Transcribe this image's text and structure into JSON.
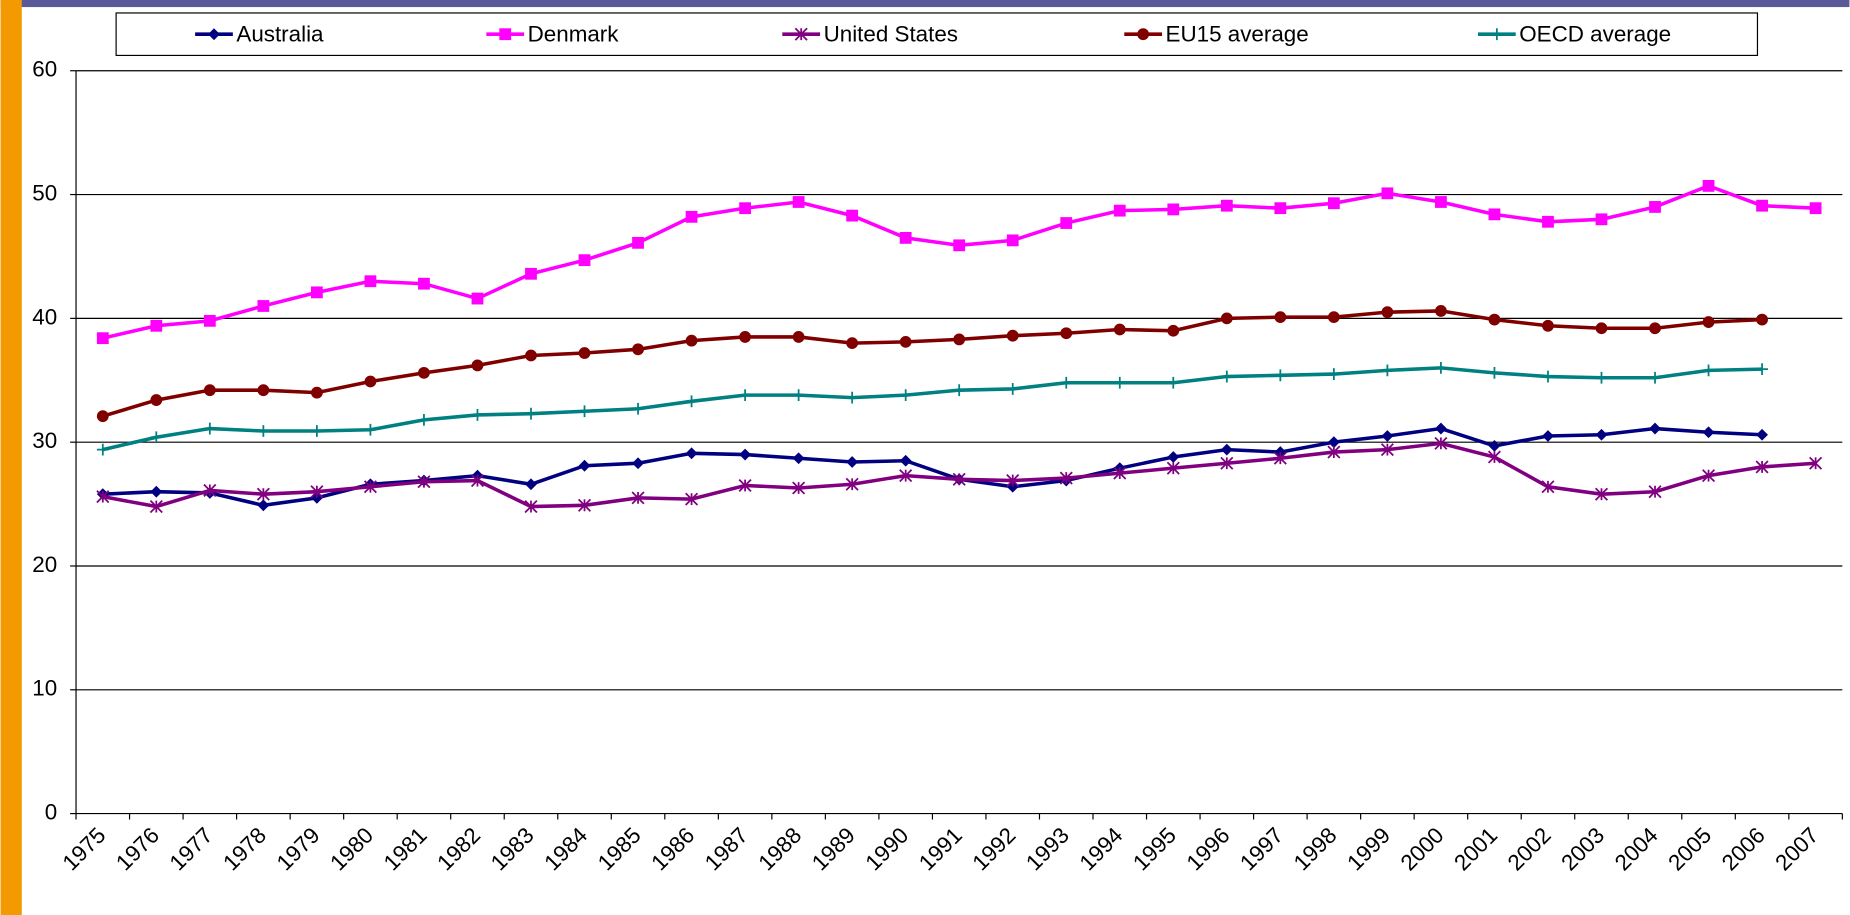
{
  "chart_data": {
    "type": "line",
    "categories": [
      "1975",
      "1976",
      "1977",
      "1978",
      "1979",
      "1980",
      "1981",
      "1982",
      "1983",
      "1984",
      "1985",
      "1986",
      "1987",
      "1988",
      "1989",
      "1990",
      "1991",
      "1992",
      "1993",
      "1994",
      "1995",
      "1996",
      "1997",
      "1998",
      "1999",
      "2000",
      "2001",
      "2002",
      "2003",
      "2004",
      "2005",
      "2006",
      "2007"
    ],
    "series": [
      {
        "name": "Australia",
        "color": "#000080",
        "marker": "diamond",
        "values": [
          25.8,
          26.0,
          25.9,
          24.9,
          25.5,
          26.6,
          26.9,
          27.3,
          26.6,
          28.1,
          28.3,
          29.1,
          29.0,
          28.7,
          28.4,
          28.5,
          27.0,
          26.4,
          26.9,
          27.9,
          28.8,
          29.4,
          29.2,
          30.0,
          30.5,
          31.1,
          29.7,
          30.5,
          30.6,
          31.1,
          30.8,
          30.6,
          null
        ]
      },
      {
        "name": "Denmark",
        "color": "#ff00ff",
        "marker": "square",
        "values": [
          38.4,
          39.4,
          39.8,
          41.0,
          42.1,
          43.0,
          42.8,
          41.6,
          43.6,
          44.7,
          46.1,
          48.2,
          48.9,
          49.4,
          48.3,
          46.5,
          45.9,
          46.3,
          47.7,
          48.7,
          48.8,
          49.1,
          48.9,
          49.3,
          50.1,
          49.4,
          48.4,
          47.8,
          48.0,
          49.0,
          50.7,
          49.1,
          48.9
        ]
      },
      {
        "name": "United States",
        "color": "#800080",
        "marker": "asterisk",
        "values": [
          25.6,
          24.8,
          26.1,
          25.8,
          26.0,
          26.4,
          26.8,
          26.9,
          24.8,
          24.9,
          25.5,
          25.4,
          26.5,
          26.3,
          26.6,
          27.3,
          27.0,
          26.9,
          27.1,
          27.5,
          27.9,
          28.3,
          28.7,
          29.2,
          29.4,
          29.9,
          28.8,
          26.4,
          25.8,
          26.0,
          27.3,
          28.0,
          28.3
        ]
      },
      {
        "name": "EU15 average",
        "color": "#800000",
        "marker": "circle",
        "values": [
          32.1,
          33.4,
          34.2,
          34.2,
          34.0,
          34.9,
          35.6,
          36.2,
          37.0,
          37.2,
          37.5,
          38.2,
          38.5,
          38.5,
          38.0,
          38.1,
          38.3,
          38.6,
          38.8,
          39.1,
          39.0,
          40.0,
          40.1,
          40.1,
          40.5,
          40.6,
          39.9,
          39.4,
          39.2,
          39.2,
          39.7,
          39.9,
          null
        ]
      },
      {
        "name": "OECD average",
        "color": "#008080",
        "marker": "plus",
        "values": [
          29.4,
          30.4,
          31.1,
          30.9,
          30.9,
          31.0,
          31.8,
          32.2,
          32.3,
          32.5,
          32.7,
          33.3,
          33.8,
          33.8,
          33.6,
          33.8,
          34.2,
          34.3,
          34.8,
          34.8,
          34.8,
          35.3,
          35.4,
          35.5,
          35.8,
          36.0,
          35.6,
          35.3,
          35.2,
          35.2,
          35.8,
          35.9,
          null
        ]
      }
    ],
    "ylim": [
      0,
      60
    ],
    "yticks": [
      0,
      10,
      20,
      30,
      40,
      50,
      60
    ],
    "grid": true,
    "legend": "top"
  }
}
